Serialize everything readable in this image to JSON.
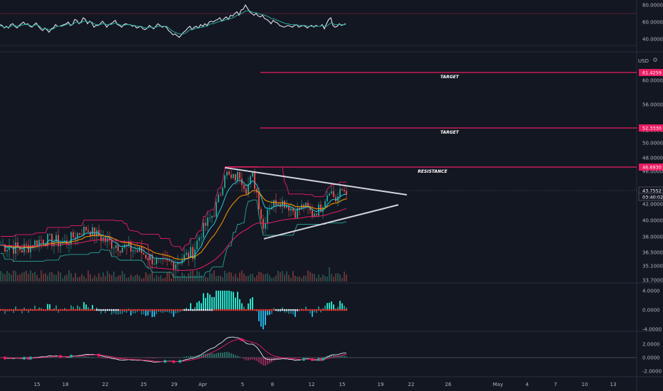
{
  "colors": {
    "background": "#131722",
    "bull": "#26a69a",
    "bear": "#ef5350",
    "accent": "#e91e63",
    "grid": "#2a2e39",
    "text": "#b2b5be",
    "line_white": "#e0e3eb",
    "ma_fast": "#26c6da",
    "ma_mid": "#ff9800",
    "ma_slow": "#e91e63"
  },
  "chart_data": [
    {
      "type": "line",
      "pane": "oscillator-top",
      "y_ticks": [
        "80.0000",
        "60.0000",
        "40.0000"
      ],
      "ylim": [
        40,
        80
      ],
      "series": [
        {
          "values": [
            57,
            56,
            53,
            55,
            53,
            57,
            58,
            55,
            53,
            56,
            58,
            60,
            57,
            58,
            55,
            54,
            57,
            59,
            55,
            52,
            50,
            53,
            51,
            48,
            52,
            53,
            57,
            55,
            55,
            56,
            57,
            58,
            60,
            56,
            57,
            63,
            62,
            58,
            60,
            65,
            63,
            58,
            61,
            59,
            54,
            56,
            56,
            58,
            61,
            58,
            54,
            57,
            58,
            60,
            62,
            57,
            56,
            54,
            57,
            58,
            57,
            57,
            55,
            56,
            53,
            54,
            55,
            52,
            51,
            53,
            56,
            54,
            52,
            55,
            58,
            56,
            54,
            55,
            54,
            50,
            48,
            45,
            46,
            44,
            42,
            45,
            48,
            50,
            53,
            55,
            51,
            54,
            55,
            53,
            57,
            55,
            58,
            56,
            60,
            61,
            60,
            62,
            63,
            65,
            61,
            64,
            66,
            63,
            68,
            67,
            70,
            72,
            68,
            74,
            75,
            80,
            76,
            72,
            70,
            68,
            70,
            67,
            66,
            68,
            64,
            63,
            61,
            58,
            62,
            60,
            59,
            56,
            55,
            54,
            55,
            56,
            55,
            54,
            56,
            57,
            54,
            55,
            56,
            55,
            53,
            55,
            56,
            54,
            56,
            55,
            55,
            57,
            52,
            58,
            63,
            65,
            56,
            54,
            55,
            58,
            56,
            57,
            58
          ]
        },
        {
          "values": [
            56,
            55,
            54,
            54,
            54,
            55,
            56,
            56,
            55,
            55,
            56,
            57,
            57,
            57,
            56,
            55,
            56,
            57,
            56,
            54,
            52,
            52,
            52,
            51,
            51,
            52,
            54,
            55,
            55,
            55,
            56,
            57,
            58,
            57,
            57,
            59,
            60,
            59,
            59,
            61,
            61,
            60,
            60,
            60,
            58,
            57,
            57,
            57,
            58,
            58,
            57,
            57,
            57,
            58,
            59,
            58,
            57,
            56,
            56,
            57,
            57,
            57,
            56,
            56,
            55,
            55,
            55,
            54,
            53,
            53,
            54,
            54,
            53,
            54,
            55,
            55,
            55,
            55,
            55,
            53,
            51,
            49,
            48,
            47,
            46,
            46,
            46,
            47,
            49,
            51,
            51,
            52,
            53,
            53,
            54,
            54,
            55,
            55,
            57,
            58,
            58,
            59,
            60,
            61,
            61,
            62,
            63,
            63,
            64,
            65,
            66,
            68,
            68,
            70,
            71,
            73,
            73,
            73,
            72,
            71,
            71,
            70,
            69,
            69,
            68,
            67,
            66,
            64,
            64,
            63,
            62,
            61,
            60,
            59,
            58,
            58,
            57,
            57,
            57,
            57,
            56,
            56,
            56,
            56,
            55,
            55,
            55,
            55,
            55,
            55,
            55,
            56,
            55,
            55,
            57,
            59,
            58,
            57,
            57,
            57,
            57,
            57,
            57
          ]
        }
      ]
    },
    {
      "type": "candlestick",
      "pane": "price",
      "currency": "USD",
      "y_ticks": [
        "60.0000",
        "56.0000",
        "52.0000",
        "50.0000",
        "48.0000",
        "46.0000",
        "42.0000",
        "40.0000",
        "38.0000",
        "36.5000",
        "35.1000",
        "33.7000"
      ],
      "x_ticks": [
        "15",
        "18",
        "22",
        "25",
        "29",
        "Apr",
        "5",
        "8",
        "12",
        "15",
        "19",
        "22",
        "26",
        "May",
        "4",
        "7",
        "10",
        "13"
      ],
      "price_labels": [
        {
          "value": "61.4259",
          "color": "#e91e63"
        },
        {
          "value": "52.3330",
          "color": "#e91e63"
        },
        {
          "value": "46.6930",
          "color": "#e91e63"
        },
        {
          "value": "43.7552",
          "color": "#ffffff"
        },
        {
          "value": "03:40:02",
          "color": "#ffffff"
        }
      ],
      "annotations": [
        {
          "text": "TARGET",
          "level": 61.4259
        },
        {
          "text": "TARGET",
          "level": 52.333
        },
        {
          "text": "RESISTANCE",
          "level": 46.693
        }
      ],
      "current_price": 43.7552,
      "triangle": {
        "upper": [
          [
            46.6,
            43.2
          ]
        ],
        "lower": [
          [
            37.8,
            41.9
          ]
        ]
      }
    },
    {
      "type": "histogram",
      "pane": "momentum",
      "y_ticks": [
        "4.0000",
        "0.0000",
        "-4.0000"
      ],
      "ylim": [
        -4,
        4
      ]
    },
    {
      "type": "line",
      "pane": "macd",
      "y_ticks": [
        "2.0000",
        "0.0000",
        "-2.0000"
      ],
      "ylim": [
        -2.4,
        2.4
      ]
    }
  ]
}
